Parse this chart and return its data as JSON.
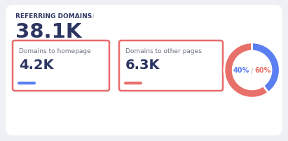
{
  "bg_color": "#eef0f5",
  "card_bg": "#ffffff",
  "title": "REFERRING DOMAINS",
  "title_info": "i",
  "main_value": "38.1K",
  "box1_label": "Domains to homepage",
  "box1_value": "4.2K",
  "box1_color": "#5b7ff1",
  "box1_border_color": "#e86b6b",
  "box2_label": "Domains to other pages",
  "box2_value": "6.3K",
  "box2_color": "#e8706a",
  "box2_border_color": "#e86b6b",
  "donut_pct1": 40,
  "donut_pct2": 60,
  "donut_color1": "#5b7ff1",
  "donut_color2": "#e8706a",
  "donut_label1": "40%",
  "donut_label2": "60%",
  "title_color": "#2d3561",
  "label_color": "#6b7280",
  "value_color": "#2d3561",
  "info_color": "#9ca3af"
}
